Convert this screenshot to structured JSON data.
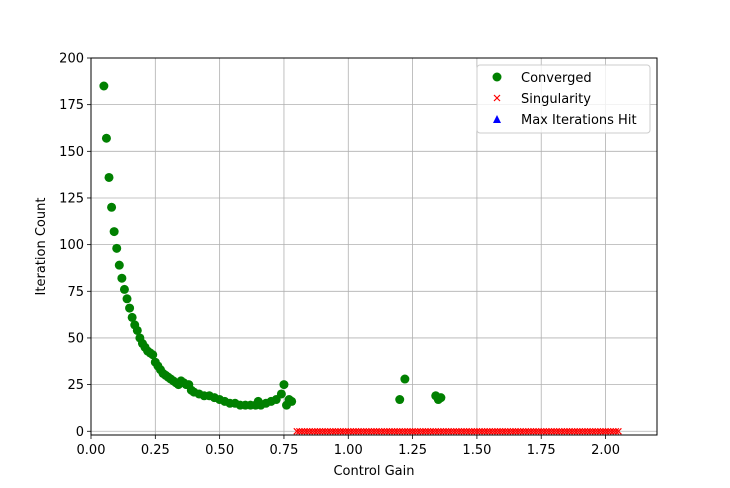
{
  "chart_data": {
    "type": "scatter",
    "xlabel": "Control Gain",
    "ylabel": "Iteration Count",
    "xlim": [
      0.0,
      2.2
    ],
    "ylim": [
      -2,
      200
    ],
    "xticks": [
      0.0,
      0.25,
      0.5,
      0.75,
      1.0,
      1.25,
      1.5,
      1.75,
      2.0
    ],
    "xtick_labels": [
      "0.00",
      "0.25",
      "0.50",
      "0.75",
      "1.00",
      "1.25",
      "1.50",
      "1.75",
      "2.00"
    ],
    "yticks": [
      0,
      25,
      50,
      75,
      100,
      125,
      150,
      175,
      200
    ],
    "ytick_labels": [
      "0",
      "25",
      "50",
      "75",
      "100",
      "125",
      "150",
      "175",
      "200"
    ],
    "grid": true,
    "legend_position": "top-right",
    "series": [
      {
        "name": "Converged",
        "marker": "circle",
        "color": "#008000",
        "x": [
          0.05,
          0.06,
          0.07,
          0.08,
          0.09,
          0.1,
          0.11,
          0.12,
          0.13,
          0.14,
          0.15,
          0.16,
          0.17,
          0.18,
          0.19,
          0.2,
          0.21,
          0.22,
          0.23,
          0.24,
          0.25,
          0.26,
          0.27,
          0.28,
          0.29,
          0.3,
          0.31,
          0.32,
          0.33,
          0.34,
          0.35,
          0.36,
          0.37,
          0.38,
          0.39,
          0.4,
          0.42,
          0.44,
          0.46,
          0.48,
          0.5,
          0.52,
          0.54,
          0.56,
          0.58,
          0.6,
          0.62,
          0.64,
          0.65,
          0.66,
          0.68,
          0.7,
          0.72,
          0.74,
          0.75,
          0.76,
          0.77,
          0.78,
          1.2,
          1.22,
          1.34,
          1.35,
          1.36
        ],
        "y": [
          185,
          157,
          136,
          120,
          107,
          98,
          89,
          82,
          76,
          71,
          66,
          61,
          57,
          54,
          50,
          47,
          45,
          43,
          42,
          41,
          37,
          35,
          33,
          31,
          30,
          29,
          28,
          27,
          26,
          25,
          27,
          26,
          25,
          25,
          22,
          21,
          20,
          19,
          19,
          18,
          17,
          16,
          15,
          15,
          14,
          14,
          14,
          14,
          16,
          14,
          15,
          16,
          17,
          20,
          25,
          14,
          17,
          16,
          17,
          28,
          19,
          17,
          18
        ]
      },
      {
        "name": "Singularity",
        "marker": "x",
        "color": "#ff0000",
        "x_start": 0.8,
        "x_end": 2.05,
        "x_step": 0.01,
        "y": 0
      },
      {
        "name": "Max Iterations Hit",
        "marker": "triangle",
        "color": "#0000ff",
        "x": [],
        "y": []
      }
    ]
  }
}
